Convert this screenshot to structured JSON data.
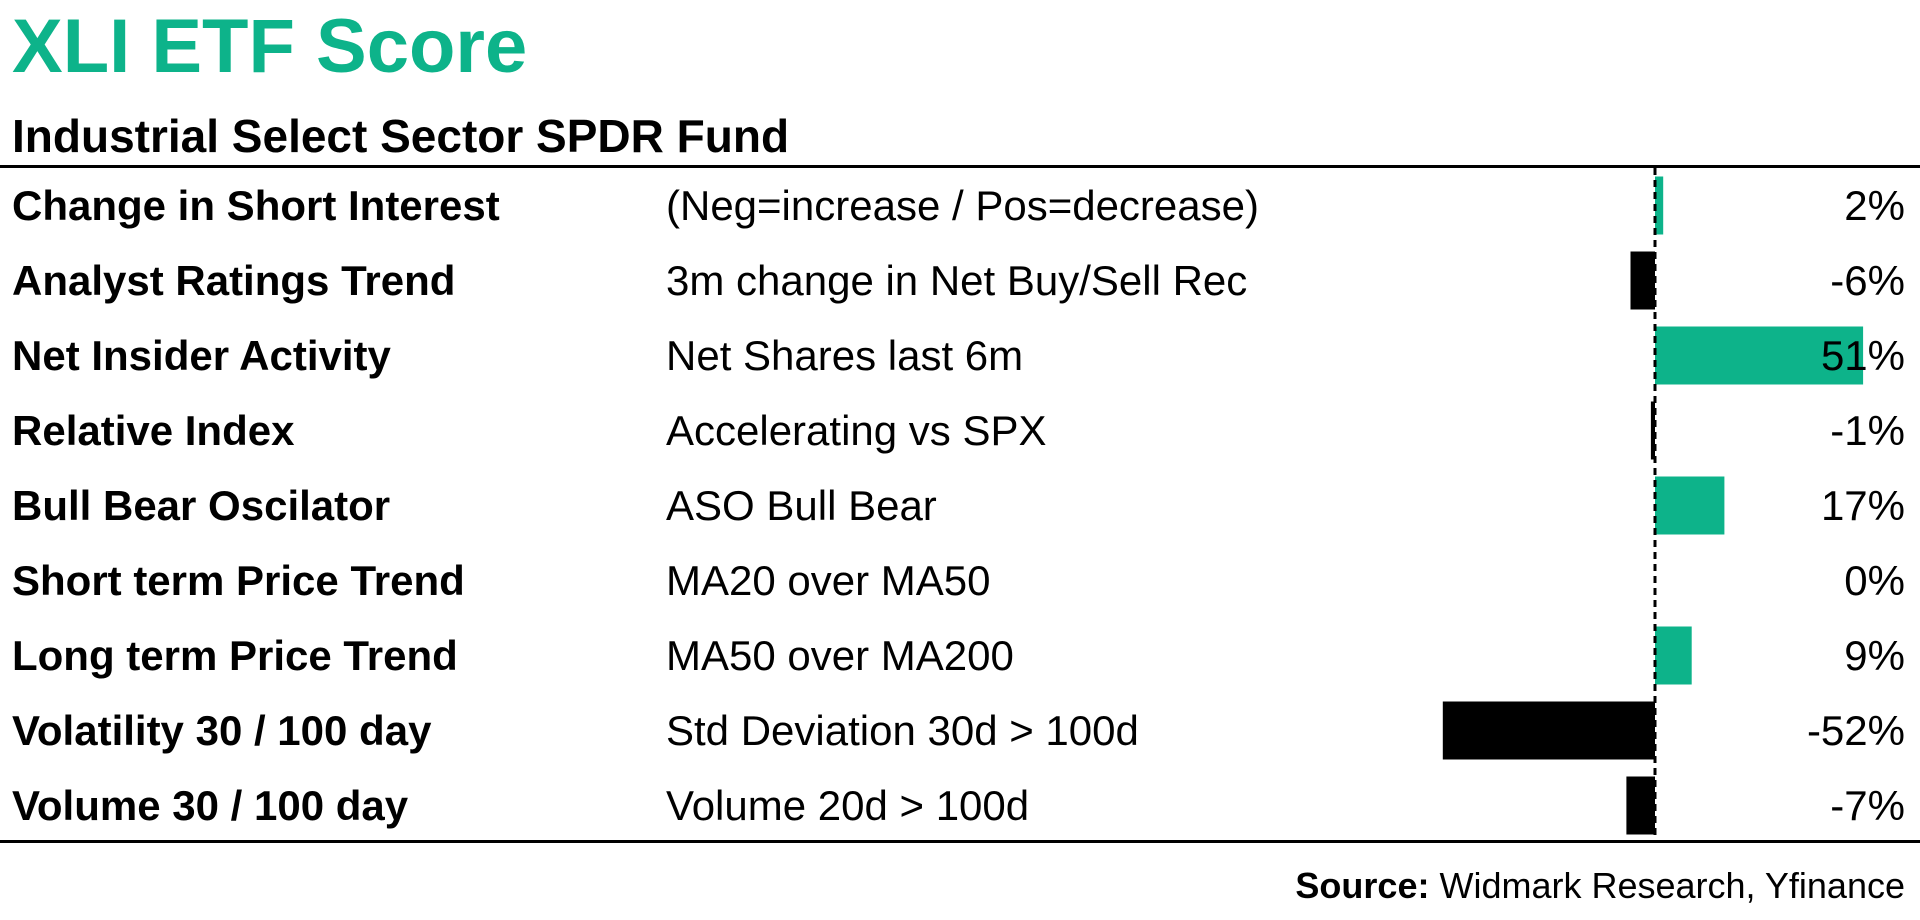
{
  "header": {
    "title": "XLI ETF Score",
    "subtitle": "Industrial Select Sector SPDR Fund"
  },
  "colors": {
    "title": "#0db38a",
    "positive": "#0db38a",
    "negative": "#000000",
    "zero_line": "#000000"
  },
  "chart_data": {
    "type": "bar",
    "orientation": "horizontal",
    "title": "XLI ETF Score",
    "subtitle": "Industrial Select Sector SPDR Fund",
    "categories": [
      "Change in Short Interest",
      "Analyst Ratings Trend",
      "Net Insider Activity",
      "Relative Index",
      "Bull Bear Oscilator",
      "Short term Price Trend",
      "Long term Price Trend",
      "Volatility 30 / 100 day",
      "Volume 30 / 100 day"
    ],
    "descriptions": [
      "(Neg=increase / Pos=decrease)",
      "3m change in Net Buy/Sell Rec",
      "Net Shares last 6m",
      "Accelerating vs SPX",
      "ASO Bull Bear",
      "MA20 over MA50",
      "MA50 over MA200",
      "Std Deviation 30d > 100d",
      "Volume 20d > 100d"
    ],
    "values": [
      2,
      -6,
      51,
      -1,
      17,
      0,
      9,
      -52,
      -7
    ],
    "value_labels": [
      "2%",
      "-6%",
      "51%",
      "-1%",
      "17%",
      "0%",
      "9%",
      "-52%",
      "-7%"
    ],
    "unit": "%",
    "zero_line": "dashed",
    "positive_color": "#0db38a",
    "negative_color": "#000000"
  },
  "footer": {
    "source_label": "Source:",
    "source_text": " Widmark Research, Yfinance"
  }
}
